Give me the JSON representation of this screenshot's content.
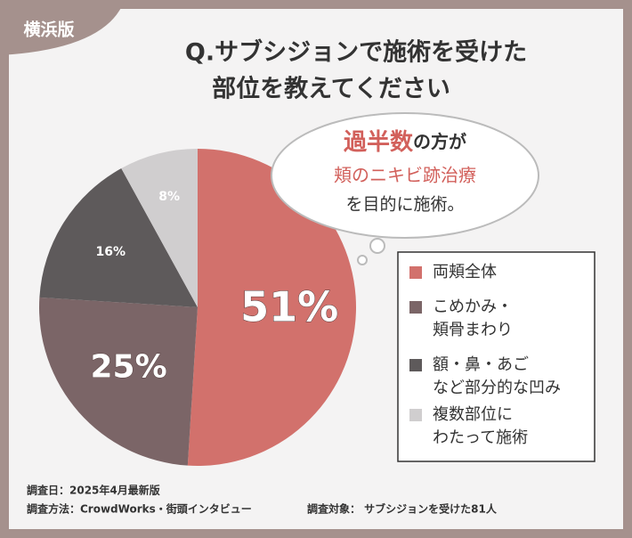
{
  "badge": "横浜版",
  "chart_data": {
    "type": "pie",
    "title": [
      "Q.サブシジョンで施術を受けた",
      "部位を教えてください"
    ],
    "categories": [
      "両頬全体",
      "こめかみ・\n頬骨まわり",
      "額・鼻・あご\nなど部分的な凹み",
      "複数部位に\nわたって施術"
    ],
    "values": [
      51,
      25,
      16,
      8
    ],
    "value_labels": [
      "51%",
      "25%",
      "16%",
      "8%"
    ],
    "colors": [
      "#d2716c",
      "#7b6567",
      "#5e5a5b",
      "#d0cecf"
    ],
    "annotation": [
      [
        "過半数",
        "の方が"
      ],
      [
        "頬のニキビ跡治療"
      ],
      [
        "を目的に施術。"
      ]
    ]
  },
  "footer": [
    "調査日：2025年4月最新版",
    "調査方法：CrowdWorks・街頭インタビュー",
    "調査対象： サブシジョンを受けた81人"
  ]
}
